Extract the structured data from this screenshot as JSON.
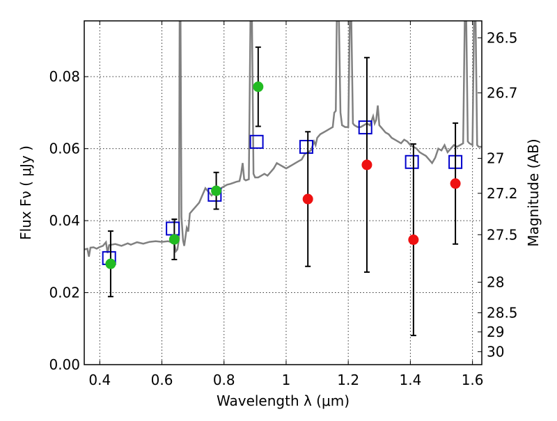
{
  "chart_data": {
    "type": "scatter",
    "xlabel": "Wavelength  λ (μm)",
    "ylabel": "Flux  Fν ( μJy )",
    "ylabel_right": "Magnitude (AB)",
    "xlim": [
      0.35,
      1.63
    ],
    "ylim": [
      0.0,
      0.0955
    ],
    "x_ticks": [
      0.4,
      0.6,
      0.8,
      1.0,
      1.2,
      1.4,
      1.6
    ],
    "x_tick_labels": [
      "0.4",
      "0.6",
      "0.8",
      "1",
      "1.2",
      "1.4",
      "1.6"
    ],
    "y_ticks": [
      0.0,
      0.02,
      0.04,
      0.06,
      0.08
    ],
    "y_tick_labels": [
      "0.00",
      "0.02",
      "0.04",
      "0.06",
      "0.08"
    ],
    "right_ticks": [
      {
        "label": "26.5",
        "flux": 0.0908
      },
      {
        "label": "26.7",
        "flux": 0.0755
      },
      {
        "label": "27",
        "flux": 0.0573
      },
      {
        "label": "27.2",
        "flux": 0.0476
      },
      {
        "label": "27.5",
        "flux": 0.0361
      },
      {
        "label": "28",
        "flux": 0.0229
      },
      {
        "label": "28.5",
        "flux": 0.0144
      },
      {
        "label": "29",
        "flux": 0.0091
      },
      {
        "label": "30",
        "flux": 0.0036
      }
    ],
    "grid": true,
    "colors": {
      "model_line": "#808080",
      "model_points": "#0000cc",
      "detections": "#22bb22",
      "upper_limits": "#ee1111",
      "errorbars": "#000000"
    },
    "series": [
      {
        "kind": "line",
        "values": [
          [
            0.35,
            0.032
          ],
          [
            0.36,
            0.0322
          ],
          [
            0.365,
            0.03
          ],
          [
            0.37,
            0.0325
          ],
          [
            0.38,
            0.0326
          ],
          [
            0.39,
            0.0322
          ],
          [
            0.4,
            0.0327
          ],
          [
            0.41,
            0.033
          ],
          [
            0.42,
            0.034
          ],
          [
            0.425,
            0.031
          ],
          [
            0.43,
            0.0332
          ],
          [
            0.45,
            0.0335
          ],
          [
            0.47,
            0.033
          ],
          [
            0.49,
            0.0337
          ],
          [
            0.5,
            0.0333
          ],
          [
            0.52,
            0.034
          ],
          [
            0.54,
            0.0336
          ],
          [
            0.56,
            0.0341
          ],
          [
            0.58,
            0.0343
          ],
          [
            0.6,
            0.0341
          ],
          [
            0.62,
            0.0343
          ],
          [
            0.63,
            0.034
          ],
          [
            0.64,
            0.0335
          ],
          [
            0.645,
            0.0315
          ],
          [
            0.65,
            0.032
          ],
          [
            0.655,
            0.035
          ],
          [
            0.657,
            0.0955
          ],
          [
            0.66,
            0.0955
          ],
          [
            0.663,
            0.041
          ],
          [
            0.668,
            0.0345
          ],
          [
            0.672,
            0.033
          ],
          [
            0.68,
            0.038
          ],
          [
            0.685,
            0.037
          ],
          [
            0.69,
            0.042
          ],
          [
            0.7,
            0.043
          ],
          [
            0.71,
            0.044
          ],
          [
            0.72,
            0.045
          ],
          [
            0.73,
            0.047
          ],
          [
            0.74,
            0.049
          ],
          [
            0.75,
            0.048
          ],
          [
            0.76,
            0.047
          ],
          [
            0.77,
            0.048
          ],
          [
            0.78,
            0.0485
          ],
          [
            0.79,
            0.049
          ],
          [
            0.8,
            0.0495
          ],
          [
            0.81,
            0.05
          ],
          [
            0.82,
            0.0502
          ],
          [
            0.83,
            0.0505
          ],
          [
            0.84,
            0.0508
          ],
          [
            0.85,
            0.051
          ],
          [
            0.855,
            0.053
          ],
          [
            0.86,
            0.056
          ],
          [
            0.865,
            0.0515
          ],
          [
            0.87,
            0.0512
          ],
          [
            0.88,
            0.0515
          ],
          [
            0.885,
            0.0955
          ],
          [
            0.89,
            0.0955
          ],
          [
            0.895,
            0.053
          ],
          [
            0.9,
            0.052
          ],
          [
            0.91,
            0.052
          ],
          [
            0.92,
            0.0525
          ],
          [
            0.93,
            0.053
          ],
          [
            0.94,
            0.0525
          ],
          [
            0.95,
            0.0535
          ],
          [
            0.96,
            0.0545
          ],
          [
            0.97,
            0.056
          ],
          [
            0.98,
            0.0555
          ],
          [
            0.99,
            0.055
          ],
          [
            1.0,
            0.0545
          ],
          [
            1.01,
            0.055
          ],
          [
            1.02,
            0.0555
          ],
          [
            1.03,
            0.056
          ],
          [
            1.04,
            0.0565
          ],
          [
            1.05,
            0.057
          ],
          [
            1.06,
            0.0585
          ],
          [
            1.07,
            0.059
          ],
          [
            1.08,
            0.0595
          ],
          [
            1.09,
            0.062
          ],
          [
            1.095,
            0.061
          ],
          [
            1.1,
            0.063
          ],
          [
            1.11,
            0.064
          ],
          [
            1.12,
            0.0645
          ],
          [
            1.13,
            0.065
          ],
          [
            1.14,
            0.0655
          ],
          [
            1.15,
            0.066
          ],
          [
            1.155,
            0.07
          ],
          [
            1.16,
            0.0705
          ],
          [
            1.163,
            0.0955
          ],
          [
            1.17,
            0.0955
          ],
          [
            1.175,
            0.07
          ],
          [
            1.18,
            0.0665
          ],
          [
            1.19,
            0.066
          ],
          [
            1.2,
            0.066
          ],
          [
            1.205,
            0.0955
          ],
          [
            1.21,
            0.0955
          ],
          [
            1.215,
            0.067
          ],
          [
            1.22,
            0.0665
          ],
          [
            1.23,
            0.066
          ],
          [
            1.24,
            0.066
          ],
          [
            1.25,
            0.0665
          ],
          [
            1.26,
            0.067
          ],
          [
            1.27,
            0.0665
          ],
          [
            1.28,
            0.069
          ],
          [
            1.285,
            0.067
          ],
          [
            1.29,
            0.068
          ],
          [
            1.295,
            0.072
          ],
          [
            1.3,
            0.0665
          ],
          [
            1.31,
            0.0655
          ],
          [
            1.32,
            0.0645
          ],
          [
            1.33,
            0.064
          ],
          [
            1.34,
            0.063
          ],
          [
            1.35,
            0.0625
          ],
          [
            1.36,
            0.062
          ],
          [
            1.37,
            0.0615
          ],
          [
            1.38,
            0.0625
          ],
          [
            1.39,
            0.062
          ],
          [
            1.4,
            0.061
          ],
          [
            1.41,
            0.0605
          ],
          [
            1.42,
            0.06
          ],
          [
            1.43,
            0.059
          ],
          [
            1.44,
            0.0585
          ],
          [
            1.45,
            0.058
          ],
          [
            1.46,
            0.057
          ],
          [
            1.47,
            0.056
          ],
          [
            1.48,
            0.0575
          ],
          [
            1.49,
            0.06
          ],
          [
            1.5,
            0.0595
          ],
          [
            1.51,
            0.061
          ],
          [
            1.52,
            0.059
          ],
          [
            1.53,
            0.06
          ],
          [
            1.54,
            0.061
          ],
          [
            1.55,
            0.0605
          ],
          [
            1.56,
            0.061
          ],
          [
            1.57,
            0.0615
          ],
          [
            1.575,
            0.0955
          ],
          [
            1.58,
            0.0955
          ],
          [
            1.585,
            0.062
          ],
          [
            1.59,
            0.0615
          ],
          [
            1.6,
            0.061
          ],
          [
            1.605,
            0.0955
          ],
          [
            1.61,
            0.0955
          ],
          [
            1.615,
            0.061
          ],
          [
            1.62,
            0.0605
          ],
          [
            1.63,
            0.0605
          ]
        ]
      },
      {
        "kind": "open-square",
        "points": [
          [
            0.43,
            0.0296
          ],
          [
            0.635,
            0.0378
          ],
          [
            0.77,
            0.0472
          ],
          [
            0.905,
            0.0619
          ],
          [
            1.065,
            0.0605
          ],
          [
            1.255,
            0.0659
          ],
          [
            1.405,
            0.0563
          ],
          [
            1.545,
            0.0563
          ]
        ]
      },
      {
        "kind": "filled-circle-detection",
        "points": [
          [
            0.435,
            0.028,
            0.0091
          ],
          [
            0.64,
            0.0348,
            0.0056
          ],
          [
            0.775,
            0.0483,
            0.0051
          ],
          [
            0.91,
            0.0772,
            0.011
          ]
        ]
      },
      {
        "kind": "filled-circle-limit",
        "points": [
          [
            1.07,
            0.046,
            0.0187
          ],
          [
            1.26,
            0.0555,
            0.0298
          ],
          [
            1.41,
            0.0347,
            0.0266
          ],
          [
            1.545,
            0.0503,
            0.0168
          ]
        ]
      }
    ]
  }
}
